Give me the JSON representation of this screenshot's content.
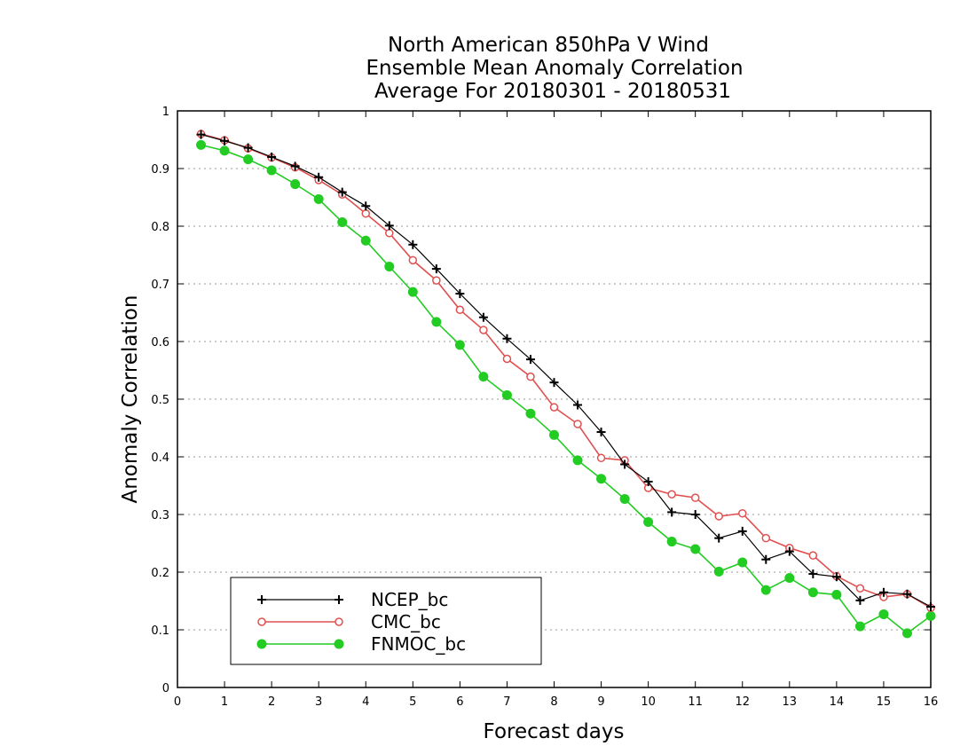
{
  "chart_data": {
    "type": "line",
    "title": [
      "North American 850hPa V Wind",
      "Ensemble Mean Anomaly Correlation",
      "Average For 20180301 - 20180531"
    ],
    "xlabel": "Forecast days",
    "ylabel": "Anomaly Correlation",
    "xlim": [
      0,
      16
    ],
    "ylim": [
      0,
      1
    ],
    "xticks": [
      0,
      1,
      2,
      3,
      4,
      5,
      6,
      7,
      8,
      9,
      10,
      11,
      12,
      13,
      14,
      15,
      16
    ],
    "yticks": [
      0,
      0.1,
      0.2,
      0.3,
      0.4,
      0.5,
      0.6,
      0.7,
      0.8,
      0.9,
      1
    ],
    "grid": "horizontal-dotted",
    "legend_position": "bottom-left",
    "x": [
      0.5,
      1,
      1.5,
      2,
      2.5,
      3,
      3.5,
      4,
      4.5,
      5,
      5.5,
      6,
      6.5,
      7,
      7.5,
      8,
      8.5,
      9,
      9.5,
      10,
      10.5,
      11,
      11.5,
      12,
      12.5,
      13,
      13.5,
      14,
      14.5,
      15,
      15.5,
      16
    ],
    "series": [
      {
        "name": "NCEP_bc",
        "color": "#000000",
        "marker": "plus",
        "values": [
          0.959,
          0.948,
          0.936,
          0.92,
          0.904,
          0.885,
          0.859,
          0.835,
          0.801,
          0.768,
          0.726,
          0.683,
          0.642,
          0.605,
          0.569,
          0.529,
          0.49,
          0.443,
          0.387,
          0.357,
          0.304,
          0.3,
          0.259,
          0.271,
          0.222,
          0.236,
          0.197,
          0.192,
          0.151,
          0.165,
          0.162,
          0.14
        ]
      },
      {
        "name": "CMC_bc",
        "color": "#e05050",
        "marker": "open-circle",
        "values": [
          0.96,
          0.949,
          0.935,
          0.919,
          0.902,
          0.88,
          0.855,
          0.822,
          0.788,
          0.741,
          0.706,
          0.655,
          0.62,
          0.57,
          0.539,
          0.486,
          0.457,
          0.398,
          0.394,
          0.346,
          0.335,
          0.329,
          0.297,
          0.302,
          0.259,
          0.242,
          0.229,
          0.193,
          0.172,
          0.157,
          0.162,
          0.138
        ]
      },
      {
        "name": "FNMOC_bc",
        "color": "#22cc22",
        "marker": "filled-circle",
        "values": [
          0.941,
          0.931,
          0.916,
          0.897,
          0.873,
          0.847,
          0.807,
          0.775,
          0.73,
          0.686,
          0.634,
          0.594,
          0.539,
          0.507,
          0.475,
          0.438,
          0.394,
          0.362,
          0.327,
          0.287,
          0.253,
          0.24,
          0.201,
          0.217,
          0.169,
          0.19,
          0.165,
          0.161,
          0.106,
          0.127,
          0.094,
          0.124
        ]
      }
    ]
  }
}
